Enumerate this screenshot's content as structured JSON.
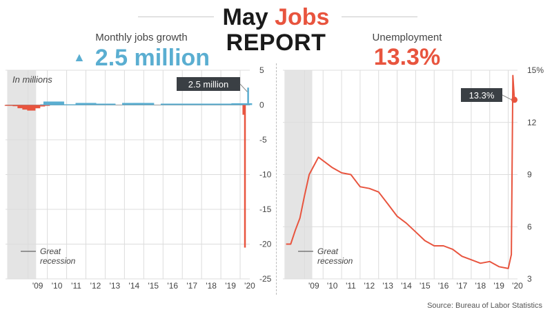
{
  "header": {
    "title_part1": "May",
    "title_part2": "Jobs",
    "title_line2": "REPORT"
  },
  "colors": {
    "blue": "#5aaed1",
    "red": "#e8543e",
    "recession_shade": "#e4e4e4",
    "callout_bg": "#3a3f44"
  },
  "source": "Source: Bureau of Labor Statistics",
  "chart_data": [
    {
      "type": "bar",
      "panel_label": "Monthly jobs growth",
      "headline": "2.5 million",
      "headline_icon": "up-triangle-icon",
      "unit_note": "In millions",
      "callout": "2.5 million",
      "recession_label": "Great recession",
      "recession_range": [
        "2007-12",
        "2009-06"
      ],
      "x_tick_labels": [
        "'09",
        "'10",
        "'11",
        "'12",
        "'13",
        "'14",
        "'15",
        "'16",
        "'17",
        "'18",
        "'19",
        "'20"
      ],
      "y_ticks": [
        5,
        0,
        -5,
        -10,
        -15,
        -20,
        -25
      ],
      "ylim": [
        -25,
        5
      ],
      "y_side": "right",
      "grid": true,
      "x": [
        "2008-01",
        "2008-06",
        "2008-09",
        "2008-12",
        "2009-03",
        "2009-06",
        "2009-09",
        "2009-12",
        "2010-03",
        "2010-05",
        "2010-12",
        "2011-06",
        "2012-01",
        "2013-01",
        "2014-06",
        "2015-01",
        "2016-06",
        "2017-06",
        "2018-06",
        "2019-06",
        "2020-02",
        "2020-03",
        "2020-04",
        "2020-05"
      ],
      "values": [
        -0.02,
        -0.17,
        -0.46,
        -0.66,
        -0.8,
        -0.47,
        -0.21,
        -0.1,
        0.1,
        0.5,
        0.1,
        0.1,
        0.3,
        0.2,
        0.3,
        0.3,
        0.2,
        0.2,
        0.2,
        0.2,
        0.25,
        -1.4,
        -20.5,
        2.5
      ]
    },
    {
      "type": "line",
      "panel_label": "Unemployment",
      "headline": "13.3%",
      "callout": "13.3%",
      "recession_label": "Great recession",
      "recession_range": [
        "2007-12",
        "2009-06"
      ],
      "x_tick_labels": [
        "'09",
        "'10",
        "'11",
        "'12",
        "'13",
        "'14",
        "'15",
        "'16",
        "'17",
        "'18",
        "'19",
        "'20"
      ],
      "y_ticks": [
        "15%",
        "12",
        "9",
        "6",
        "3"
      ],
      "ylim": [
        3,
        15
      ],
      "y_side": "right",
      "grid": true,
      "x": [
        "2008-01",
        "2008-04",
        "2008-07",
        "2008-10",
        "2009-01",
        "2009-04",
        "2009-07",
        "2009-10",
        "2010-01",
        "2010-07",
        "2011-01",
        "2011-07",
        "2012-01",
        "2012-07",
        "2013-01",
        "2013-07",
        "2014-01",
        "2014-07",
        "2015-01",
        "2015-07",
        "2016-01",
        "2016-07",
        "2017-01",
        "2017-07",
        "2018-01",
        "2018-07",
        "2019-01",
        "2019-07",
        "2020-01",
        "2020-03",
        "2020-04",
        "2020-05"
      ],
      "values": [
        5.0,
        5.0,
        5.8,
        6.5,
        7.8,
        9.0,
        9.5,
        10.0,
        9.8,
        9.4,
        9.1,
        9.0,
        8.3,
        8.2,
        8.0,
        7.3,
        6.6,
        6.2,
        5.7,
        5.2,
        4.9,
        4.9,
        4.7,
        4.3,
        4.1,
        3.9,
        4.0,
        3.7,
        3.6,
        4.4,
        14.7,
        13.3
      ]
    }
  ]
}
